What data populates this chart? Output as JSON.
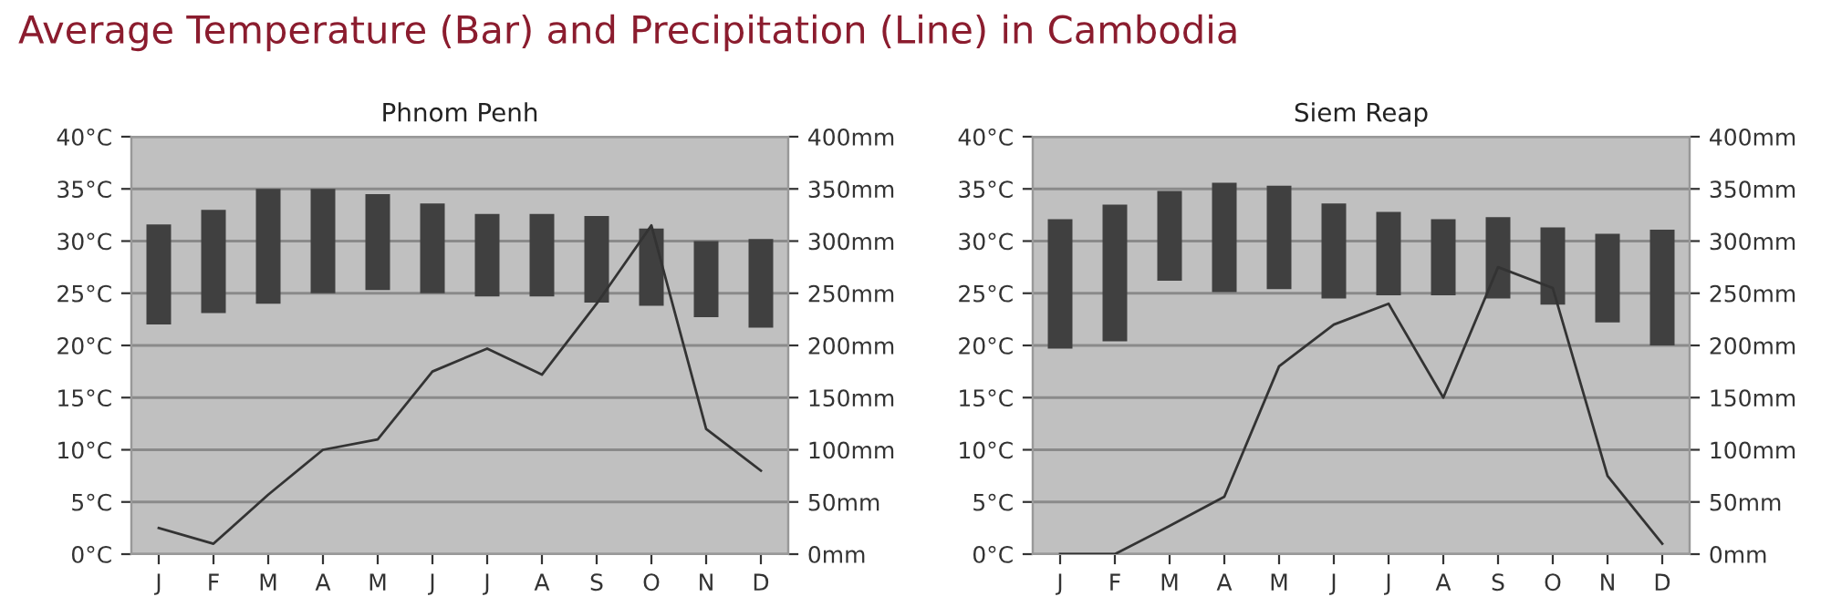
{
  "chart_data": [
    {
      "type": "bar",
      "title": "Average Temperature (Bar) and Precipitation (Line) in Cambodia",
      "subtitle": "Phnom Penh",
      "categories": [
        "J",
        "F",
        "M",
        "A",
        "M",
        "J",
        "J",
        "A",
        "S",
        "O",
        "N",
        "D"
      ],
      "series": [
        {
          "color": "#404040",
          "base": [
            22,
            23.1,
            24,
            25,
            25.3,
            25,
            24.7,
            24.7,
            24.1,
            23.8,
            22.7,
            21.7
          ],
          "values": [
            9.6,
            9.9,
            11,
            10,
            9.2,
            8.6,
            7.9,
            7.9,
            8.3,
            7.4,
            7.3,
            8.5
          ]
        },
        {
          "type": "line",
          "axis": "y2",
          "color": "#333333",
          "values": [
            25,
            10,
            57,
            100,
            110,
            175,
            197,
            172,
            240,
            315,
            120,
            80
          ]
        }
      ],
      "ylim": [
        0,
        40
      ],
      "yticks": [
        {
          "value": 0,
          "label": "0°C"
        },
        {
          "value": 5,
          "label": "5°C"
        },
        {
          "value": 10,
          "label": "10°C"
        },
        {
          "value": 15,
          "label": "15°C"
        },
        {
          "value": 20,
          "label": "20°C"
        },
        {
          "value": 25,
          "label": "25°C"
        },
        {
          "value": 30,
          "label": "30°C"
        },
        {
          "value": 35,
          "label": "35°C"
        },
        {
          "value": 40,
          "label": "40°C"
        }
      ],
      "y2lim": [
        0,
        400
      ],
      "y2ticks": [
        {
          "value": 0,
          "label": "0mm"
        },
        {
          "value": 50,
          "label": "50mm"
        },
        {
          "value": 100,
          "label": "100mm"
        },
        {
          "value": 150,
          "label": "150mm"
        },
        {
          "value": 200,
          "label": "200mm"
        },
        {
          "value": 250,
          "label": "250mm"
        },
        {
          "value": 300,
          "label": "300mm"
        },
        {
          "value": 350,
          "label": "350mm"
        },
        {
          "value": 400,
          "label": "400mm"
        }
      ],
      "grid": "y",
      "legend": false
    },
    {
      "type": "bar",
      "subtitle": "Siem Reap",
      "categories": [
        "J",
        "F",
        "M",
        "A",
        "M",
        "J",
        "J",
        "A",
        "S",
        "O",
        "N",
        "D"
      ],
      "series": [
        {
          "color": "#404040",
          "base": [
            19.7,
            20.4,
            26.2,
            25.1,
            25.4,
            24.5,
            24.8,
            24.8,
            24.5,
            23.9,
            22.2,
            20
          ],
          "values": [
            12.4,
            13.1,
            8.6,
            10.5,
            9.9,
            9.1,
            8,
            7.3,
            7.8,
            7.4,
            8.5,
            11.1
          ]
        },
        {
          "type": "line",
          "axis": "y2",
          "color": "#333333",
          "values": [
            0,
            0,
            27,
            55,
            180,
            220,
            240,
            150,
            275,
            255,
            75,
            10
          ]
        }
      ],
      "ylim": [
        0,
        40
      ],
      "yticks": [
        {
          "value": 0,
          "label": "0°C"
        },
        {
          "value": 5,
          "label": "5°C"
        },
        {
          "value": 10,
          "label": "10°C"
        },
        {
          "value": 15,
          "label": "15°C"
        },
        {
          "value": 20,
          "label": "20°C"
        },
        {
          "value": 25,
          "label": "25°C"
        },
        {
          "value": 30,
          "label": "30°C"
        },
        {
          "value": 35,
          "label": "35°C"
        },
        {
          "value": 40,
          "label": "40°C"
        }
      ],
      "y2lim": [
        0,
        400
      ],
      "y2ticks": [
        {
          "value": 0,
          "label": "0mm"
        },
        {
          "value": 50,
          "label": "50mm"
        },
        {
          "value": 100,
          "label": "100mm"
        },
        {
          "value": 150,
          "label": "150mm"
        },
        {
          "value": 200,
          "label": "200mm"
        },
        {
          "value": 250,
          "label": "250mm"
        },
        {
          "value": 300,
          "label": "300mm"
        },
        {
          "value": 350,
          "label": "350mm"
        },
        {
          "value": 400,
          "label": "400mm"
        }
      ],
      "grid": "y",
      "legend": false
    }
  ]
}
